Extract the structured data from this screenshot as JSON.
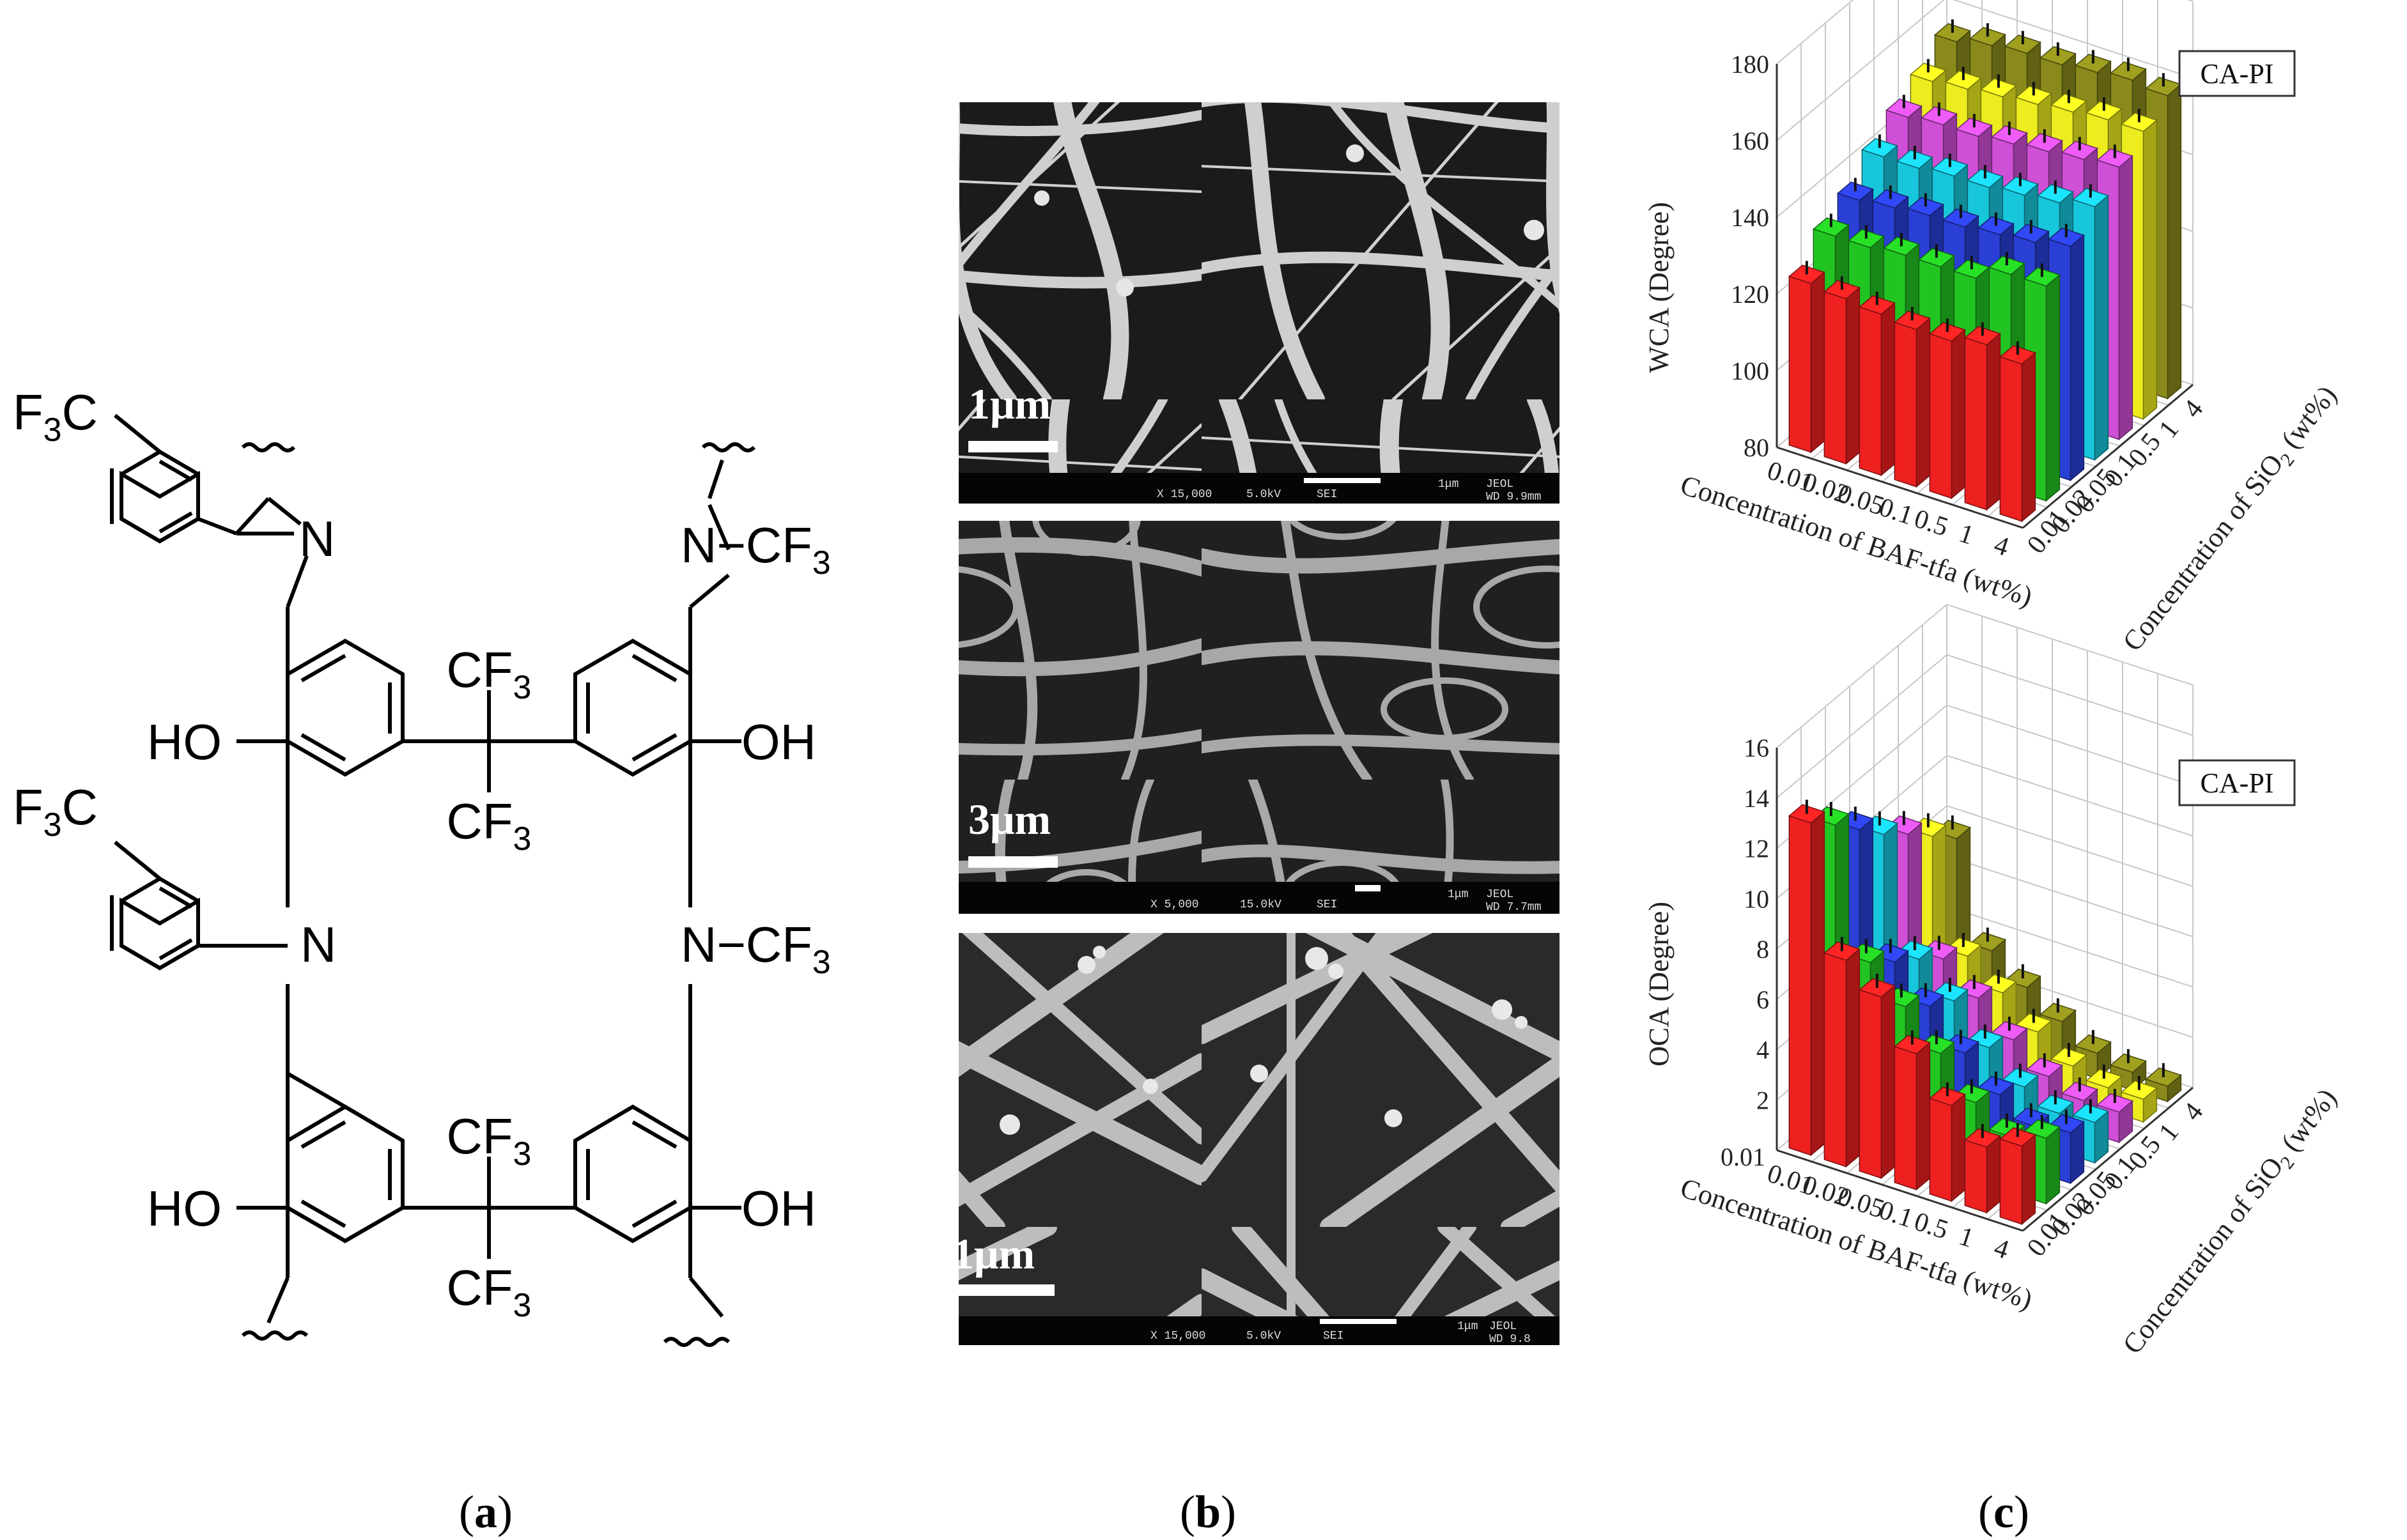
{
  "figure": {
    "panels": [
      {
        "id": "a",
        "label": "a"
      },
      {
        "id": "b",
        "label": "b"
      },
      {
        "id": "c",
        "label": "c"
      }
    ]
  },
  "panel_a": {
    "groups": {
      "cf3_aryl_top": {
        "main": "F",
        "sub": "3",
        "tail": "C"
      },
      "cf3_aryl_mid": {
        "main": "F",
        "sub": "3",
        "tail": "C"
      },
      "n_cf3_1": {
        "main": "N−CF",
        "sub": "3"
      },
      "n_cf3_2": {
        "main": "N−CF",
        "sub": "3"
      },
      "n1": "N",
      "n2": "N",
      "cf3_bridge_top_1": {
        "main": "CF",
        "sub": "3"
      },
      "cf3_bridge_top_2": {
        "main": "CF",
        "sub": "3"
      },
      "cf3_bridge_bot_1": {
        "main": "CF",
        "sub": "3"
      },
      "cf3_bridge_bot_2": {
        "main": "CF",
        "sub": "3"
      },
      "ho_1": "HO",
      "oh_1": "OH",
      "ho_2": "HO",
      "oh_2": "OH"
    }
  },
  "panel_b": {
    "images": [
      {
        "scale": "1μm",
        "footer": [
          "X 15,000",
          "5.0kV",
          "SEI",
          "1μm",
          "JEOL",
          "WD 9.9mm"
        ]
      },
      {
        "scale": "3μm",
        "footer": [
          "X 5,000",
          "15.0kV",
          "SEI",
          "1μm",
          "JEOL",
          "WD 7.7mm"
        ]
      },
      {
        "scale": "1μm",
        "footer": [
          "X 15,000",
          "5.0kV",
          "SEI",
          "1μm",
          "JEOL",
          "WD 9.8"
        ]
      }
    ]
  },
  "panel_c": {
    "colors": {
      "series": [
        "#ee2020",
        "#22c422",
        "#2a3fd6",
        "#18c6dc",
        "#cf4fd6",
        "#ecec1e",
        "#8a8a1c"
      ],
      "error_bar": "#111111",
      "grid": "#c8c8c8"
    }
  },
  "chart_data": [
    {
      "type": "bar",
      "subtype": "3d-bar",
      "legend_box": "CA-PI",
      "zlabel": "WCA (Degree)",
      "xlabel": "Concentration of BAF-tfa (wt%)",
      "ylabel": "Concentration of SiO2 (wt%)",
      "xlabel_parts": {
        "text": "Concentration of BAF-tfa (wt%)"
      },
      "ylabel_parts": {
        "main": "Concentration of SiO",
        "sub": "2",
        "tail": " (wt%)"
      },
      "x_categories": [
        "0.01",
        "0.02",
        "0.05",
        "0.1",
        "0.5",
        "1",
        "4"
      ],
      "y_categories": [
        "0.01",
        "0.02",
        "0.05",
        "0.1",
        "0.5",
        "1",
        "4"
      ],
      "zlim": [
        80,
        180
      ],
      "zticks": [
        "80",
        "100",
        "120",
        "140",
        "160",
        "180"
      ],
      "grid": true,
      "series": [
        {
          "values": [
            124,
            123,
            122,
            121,
            121,
            123,
            121
          ]
        },
        {
          "values": [
            131,
            131,
            132,
            132,
            132,
            136,
            136
          ]
        },
        {
          "values": [
            135,
            136,
            137,
            137,
            138,
            139,
            141
          ]
        },
        {
          "values": [
            141,
            141,
            142,
            142,
            143,
            144,
            146
          ]
        },
        {
          "values": [
            146,
            147,
            147,
            148,
            149,
            150,
            151
          ]
        },
        {
          "values": [
            150,
            151,
            152,
            153,
            154,
            155,
            155
          ]
        },
        {
          "values": [
            155,
            157,
            158,
            158,
            159,
            160,
            159
          ]
        }
      ]
    },
    {
      "type": "bar",
      "subtype": "3d-bar",
      "legend_box": "CA-PI",
      "zlabel": "OCA (Degree)",
      "xlabel": "Concentration of BAF-tfa (wt%)",
      "ylabel": "Concentration of SiO2 (wt%)",
      "xlabel_parts": {
        "text": "Concentration of BAF-tfa (wt%)"
      },
      "ylabel_parts": {
        "main": "Concentration of SiO",
        "sub": "2",
        "tail": " (wt%)"
      },
      "x_categories": [
        "0.01",
        "0.02",
        "0.05",
        "0.1",
        "0.5",
        "1",
        "4"
      ],
      "y_categories": [
        "0.01",
        "0.02",
        "0.05",
        "0.1",
        "0.5",
        "1",
        "4"
      ],
      "zlim": [
        0,
        16
      ],
      "zticks": [
        "2",
        "4",
        "6",
        "8",
        "10",
        "12",
        "14",
        "16"
      ],
      "zorigin_label": "0.01",
      "grid": true,
      "series": [
        {
          "values": [
            13.2,
            8.2,
            7.2,
            5.4,
            3.8,
            2.6,
            3.1
          ]
        },
        {
          "values": [
            12.3,
            7.3,
            6.0,
            4.6,
            3.1,
            2.2,
            2.6
          ]
        },
        {
          "values": [
            11.3,
            6.5,
            5.2,
            3.8,
            2.6,
            1.8,
            2.0
          ]
        },
        {
          "values": [
            10.3,
            5.8,
            4.6,
            3.2,
            2.1,
            1.5,
            1.6
          ]
        },
        {
          "values": [
            9.5,
            5.0,
            3.9,
            2.7,
            1.7,
            1.2,
            1.2
          ]
        },
        {
          "values": [
            8.6,
            4.3,
            3.3,
            2.2,
            1.3,
            0.9,
            0.9
          ]
        },
        {
          "values": [
            7.7,
            3.7,
            2.7,
            1.8,
            1.0,
            0.7,
            0.6
          ]
        }
      ]
    }
  ]
}
